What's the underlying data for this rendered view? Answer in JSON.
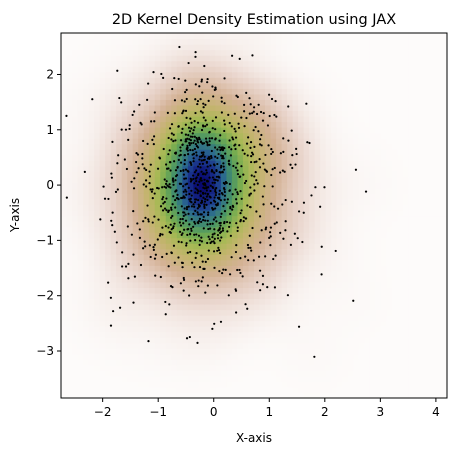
{
  "chart_data": {
    "type": "heatmap",
    "subtype": "2d-kde-with-scatter",
    "title": "2D Kernel Density Estimation using JAX",
    "xlabel": "X-axis",
    "ylabel": "Y-axis",
    "xlim": [
      -2.75,
      4.2
    ],
    "ylim": [
      -3.85,
      2.75
    ],
    "x_ticks": [
      -2,
      -1,
      0,
      1,
      2,
      3,
      4
    ],
    "y_ticks": [
      -3,
      -2,
      -1,
      0,
      1,
      2
    ],
    "x_tick_labels": [
      "−2",
      "−1",
      "0",
      "1",
      "2",
      "3",
      "4"
    ],
    "y_tick_labels": [
      "−3",
      "−2",
      "−1",
      "0",
      "1",
      "2"
    ],
    "colormap": "gist_earth_r",
    "grid": false,
    "legend": "none",
    "density_peak": {
      "x": -0.25,
      "y": 0.1
    },
    "scatter_points_count": 1000,
    "point_color": "#000000"
  }
}
